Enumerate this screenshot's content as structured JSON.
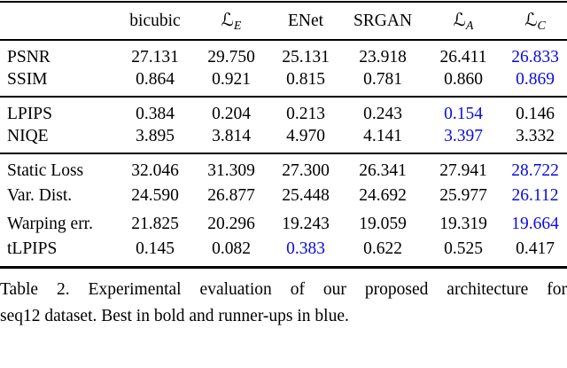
{
  "table": {
    "headers": [
      {
        "text": "",
        "sub": ""
      },
      {
        "text": "bicubic",
        "sub": ""
      },
      {
        "text": "ℒ",
        "sub": "E"
      },
      {
        "text": "ENet",
        "sub": ""
      },
      {
        "text": "SRGAN",
        "sub": ""
      },
      {
        "text": "ℒ",
        "sub": "A"
      },
      {
        "text": "ℒ",
        "sub": "C"
      }
    ],
    "groups": [
      {
        "rows": [
          {
            "label": "PSNR",
            "cells": [
              {
                "v": "27.131",
                "s": "normal"
              },
              {
                "v": "29.750",
                "s": "bold"
              },
              {
                "v": "25.131",
                "s": "normal"
              },
              {
                "v": "23.918",
                "s": "normal"
              },
              {
                "v": "26.411",
                "s": "normal"
              },
              {
                "v": "26.833",
                "s": "blue"
              }
            ]
          },
          {
            "label": "SSIM",
            "cells": [
              {
                "v": "0.864",
                "s": "normal"
              },
              {
                "v": "0.921",
                "s": "bold"
              },
              {
                "v": "0.815",
                "s": "normal"
              },
              {
                "v": "0.781",
                "s": "normal"
              },
              {
                "v": "0.860",
                "s": "normal"
              },
              {
                "v": "0.869",
                "s": "blue"
              }
            ]
          }
        ]
      },
      {
        "rows": [
          {
            "label": "LPIPS",
            "cells": [
              {
                "v": "0.384",
                "s": "normal"
              },
              {
                "v": "0.204",
                "s": "normal"
              },
              {
                "v": "0.213",
                "s": "normal"
              },
              {
                "v": "0.243",
                "s": "normal"
              },
              {
                "v": "0.154",
                "s": "blue"
              },
              {
                "v": "0.146",
                "s": "bold"
              }
            ]
          },
          {
            "label": "NIQE",
            "cells": [
              {
                "v": "3.895",
                "s": "normal"
              },
              {
                "v": "3.814",
                "s": "normal"
              },
              {
                "v": "4.970",
                "s": "normal"
              },
              {
                "v": "4.141",
                "s": "normal"
              },
              {
                "v": "3.397",
                "s": "blue"
              },
              {
                "v": "3.332",
                "s": "bold"
              }
            ]
          }
        ]
      },
      {
        "rows": [
          {
            "label": "Static Loss",
            "cells": [
              {
                "v": "32.046",
                "s": "normal"
              },
              {
                "v": "31.309",
                "s": "bold"
              },
              {
                "v": "27.300",
                "s": "normal"
              },
              {
                "v": "26.341",
                "s": "normal"
              },
              {
                "v": "27.941",
                "s": "normal"
              },
              {
                "v": "28.722",
                "s": "blue"
              }
            ]
          },
          {
            "label": "Var. Dist.",
            "cells": [
              {
                "v": "24.590",
                "s": "normal"
              },
              {
                "v": "26.877",
                "s": "bold"
              },
              {
                "v": "25.448",
                "s": "normal"
              },
              {
                "v": "24.692",
                "s": "normal"
              },
              {
                "v": "25.977",
                "s": "normal"
              },
              {
                "v": "26.112",
                "s": "blue"
              }
            ]
          },
          {
            "label": "Warping err.",
            "cells": [
              {
                "v": "21.825",
                "s": "normal"
              },
              {
                "v": "20.296",
                "s": "bold"
              },
              {
                "v": "19.243",
                "s": "normal"
              },
              {
                "v": "19.059",
                "s": "normal"
              },
              {
                "v": "19.319",
                "s": "normal"
              },
              {
                "v": "19.664",
                "s": "blue"
              }
            ]
          },
          {
            "label": "tLPIPS",
            "cells": [
              {
                "v": "0.145",
                "s": "normal"
              },
              {
                "v": "0.082",
                "s": "bold"
              },
              {
                "v": "0.383",
                "s": "blue"
              },
              {
                "v": "0.622",
                "s": "normal"
              },
              {
                "v": "0.525",
                "s": "normal"
              },
              {
                "v": "0.417",
                "s": "normal"
              }
            ]
          }
        ]
      }
    ]
  },
  "caption": {
    "line1": "Table 2. Experimental evaluation of our proposed architecture for",
    "line2": "seq12 dataset. Best in bold and runner-ups in blue."
  },
  "colors": {
    "highlight_blue": "#0b0be0",
    "text": "#000000"
  }
}
